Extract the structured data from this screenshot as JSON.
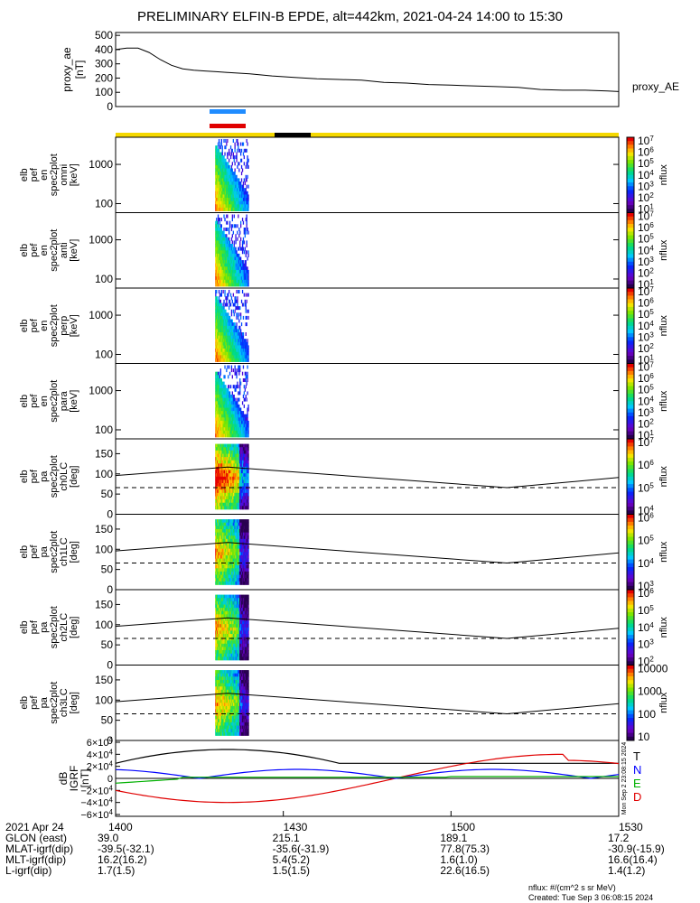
{
  "title": "PRELIMINARY ELFIN-B EPDE, alt=442km, 2021-04-24 14:00 to 15:30",
  "colors": {
    "yellow": "#f5d800",
    "black": "#000000",
    "blue_bar": "#1f8cff",
    "red_bar": "#e00000",
    "e_red": "#e00000",
    "n_blue": "#0000ff",
    "t_black": "#000000",
    "e_green": "#00b000"
  },
  "chart_data": [
    {
      "type": "line",
      "panel": "proxy_ae",
      "ylabel": [
        "proxy_ae",
        "[nT]"
      ],
      "yticks": [
        "500",
        "400",
        "300",
        "200",
        "100",
        "0"
      ],
      "ylim": [
        0,
        520
      ],
      "series_label": "proxy_AE",
      "series": [
        {
          "name": "proxy_AE",
          "x": [
            0,
            2,
            4,
            6,
            8,
            10,
            12,
            14,
            16,
            18,
            20,
            24,
            28,
            32,
            36,
            40,
            44,
            48,
            52,
            56,
            60,
            64,
            68,
            72,
            76,
            80,
            84,
            88,
            90
          ],
          "values": [
            400,
            410,
            410,
            380,
            330,
            290,
            265,
            255,
            250,
            245,
            240,
            230,
            215,
            205,
            195,
            190,
            185,
            170,
            165,
            155,
            150,
            145,
            140,
            135,
            120,
            115,
            115,
            110,
            105
          ]
        }
      ]
    },
    {
      "type": "heatmap",
      "panels": [
        {
          "ylabel": [
            "elb",
            "pef",
            "en",
            "spec2plot",
            "omni",
            "[keV]"
          ],
          "yticks": [
            "1000",
            "100"
          ],
          "cbar_ticks": [
            "10^7",
            "10^6",
            "10^5",
            "10^4",
            "10^3",
            "10^2",
            "10^1"
          ],
          "cbar_label": "nflux"
        },
        {
          "ylabel": [
            "elb",
            "pef",
            "en",
            "spec2plot",
            "anti",
            "[keV]"
          ],
          "yticks": [
            "1000",
            "100"
          ],
          "cbar_ticks": [
            "10^7",
            "10^6",
            "10^5",
            "10^4",
            "10^3",
            "10^2",
            "10^1"
          ],
          "cbar_label": "nflux"
        },
        {
          "ylabel": [
            "elb",
            "pef",
            "en",
            "spec2plot",
            "perp",
            "[keV]"
          ],
          "yticks": [
            "1000",
            "100"
          ],
          "cbar_ticks": [
            "10^7",
            "10^6",
            "10^5",
            "10^4",
            "10^3",
            "10^2",
            "10^1"
          ],
          "cbar_label": "nflux"
        },
        {
          "ylabel": [
            "elb",
            "pef",
            "en",
            "spec2plot",
            "para",
            "[keV]"
          ],
          "yticks": [
            "1000",
            "100"
          ],
          "cbar_ticks": [
            "10^7",
            "10^6",
            "10^5",
            "10^4",
            "10^3",
            "10^2",
            "10^1"
          ],
          "cbar_label": "nflux"
        },
        {
          "ylabel": [
            "elb",
            "pef",
            "pa",
            "spec2plot",
            "ch0LC",
            "[deg]"
          ],
          "yticks": [
            "150",
            "100",
            "50",
            "0"
          ],
          "cbar_ticks": [
            "10^7",
            "10^6",
            "10^5",
            "10^4"
          ],
          "cbar_label": "nflux"
        },
        {
          "ylabel": [
            "elb",
            "pef",
            "pa",
            "spec2plot",
            "ch1LC",
            "[deg]"
          ],
          "yticks": [
            "150",
            "100",
            "50",
            "0"
          ],
          "cbar_ticks": [
            "10^6",
            "10^5",
            "10^4",
            "10^3"
          ],
          "cbar_label": "nflux"
        },
        {
          "ylabel": [
            "elb",
            "pef",
            "pa",
            "spec2plot",
            "ch2LC",
            "[deg]"
          ],
          "yticks": [
            "150",
            "100",
            "50",
            "0"
          ],
          "cbar_ticks": [
            "10^6",
            "10^5",
            "10^4",
            "10^3",
            "10^2"
          ],
          "cbar_label": "nflux"
        },
        {
          "ylabel": [
            "elb",
            "pef",
            "pa",
            "spec2plot",
            "ch3LC",
            "[deg]"
          ],
          "yticks": [
            "150",
            "100",
            "50",
            "0"
          ],
          "cbar_ticks": [
            "10000",
            "1000",
            "100",
            "10"
          ],
          "cbar_label": "nflux"
        }
      ]
    },
    {
      "type": "line",
      "panel": "dB_ned",
      "ylabel": [
        "dB",
        "IGRF",
        "[nT]"
      ],
      "yticks": [
        "6×10^4",
        "4×10^4",
        "2×10^4",
        "0",
        "−2×10^4",
        "−4×10^4",
        "−6×10^4"
      ],
      "ylim": [
        -60000,
        60000
      ],
      "legend": [
        "T",
        "N",
        "E",
        "D"
      ],
      "side_note": "Mon Sep 2 23:08:15 2024"
    }
  ],
  "footer": {
    "rows": [
      {
        "label": "2021 Apr 24",
        "vals": [
          "1400",
          "1430",
          "1500",
          "1530"
        ]
      },
      {
        "label": "GLON (east)",
        "vals": [
          "39.0",
          "215.1",
          "189.1",
          "17.2"
        ]
      },
      {
        "label": "MLAT-igrf(dip)",
        "vals": [
          "-39.5(-32.1)",
          "-35.6(-31.9)",
          "77.8(75.3)",
          "-30.9(-15.9)"
        ]
      },
      {
        "label": "MLT-igrf(dip)",
        "vals": [
          "16.2(16.2)",
          "5.4(5.2)",
          "1.6(1.0)",
          "16.6(16.4)"
        ]
      },
      {
        "label": "L-igrf(dip)",
        "vals": [
          "1.7(1.5)",
          "1.5(1.5)",
          "22.6(16.5)",
          "1.4(1.2)"
        ]
      }
    ],
    "units_note": "nflux: #/(cm^2 s sr MeV)",
    "created": "Created: Tue Sep  3 06:08:15 2024"
  }
}
